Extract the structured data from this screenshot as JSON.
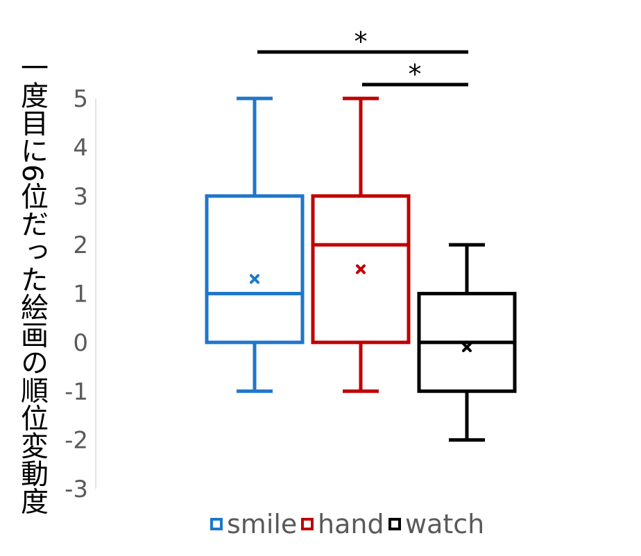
{
  "chart_data": {
    "type": "boxplot",
    "ylabel": "一度目に6位だった絵画の順位変動度",
    "ylim": [
      -3,
      5
    ],
    "yticks": [
      "5",
      "4",
      "3",
      "2",
      "1",
      "0",
      "-1",
      "-2",
      "-3"
    ],
    "yticks_values": [
      5,
      4,
      3,
      2,
      1,
      0,
      -1,
      -2,
      -3
    ],
    "series": [
      {
        "name": "smile",
        "color": "#1f77c8",
        "min": -1,
        "q1": 0,
        "median": 1,
        "q3": 3,
        "max": 5,
        "mean": 1.3
      },
      {
        "name": "hand",
        "color": "#c00000",
        "min": -1,
        "q1": 0,
        "median": 2,
        "q3": 3,
        "max": 5,
        "mean": 1.5
      },
      {
        "name": "watch",
        "color": "#000000",
        "min": -2,
        "q1": -1,
        "median": 0,
        "q3": 1,
        "max": 2,
        "mean": -0.1
      }
    ],
    "significance": [
      {
        "from": "smile",
        "to": "watch",
        "label": "*"
      },
      {
        "from": "hand",
        "to": "watch",
        "label": "*"
      }
    ],
    "legend_position": "bottom"
  }
}
